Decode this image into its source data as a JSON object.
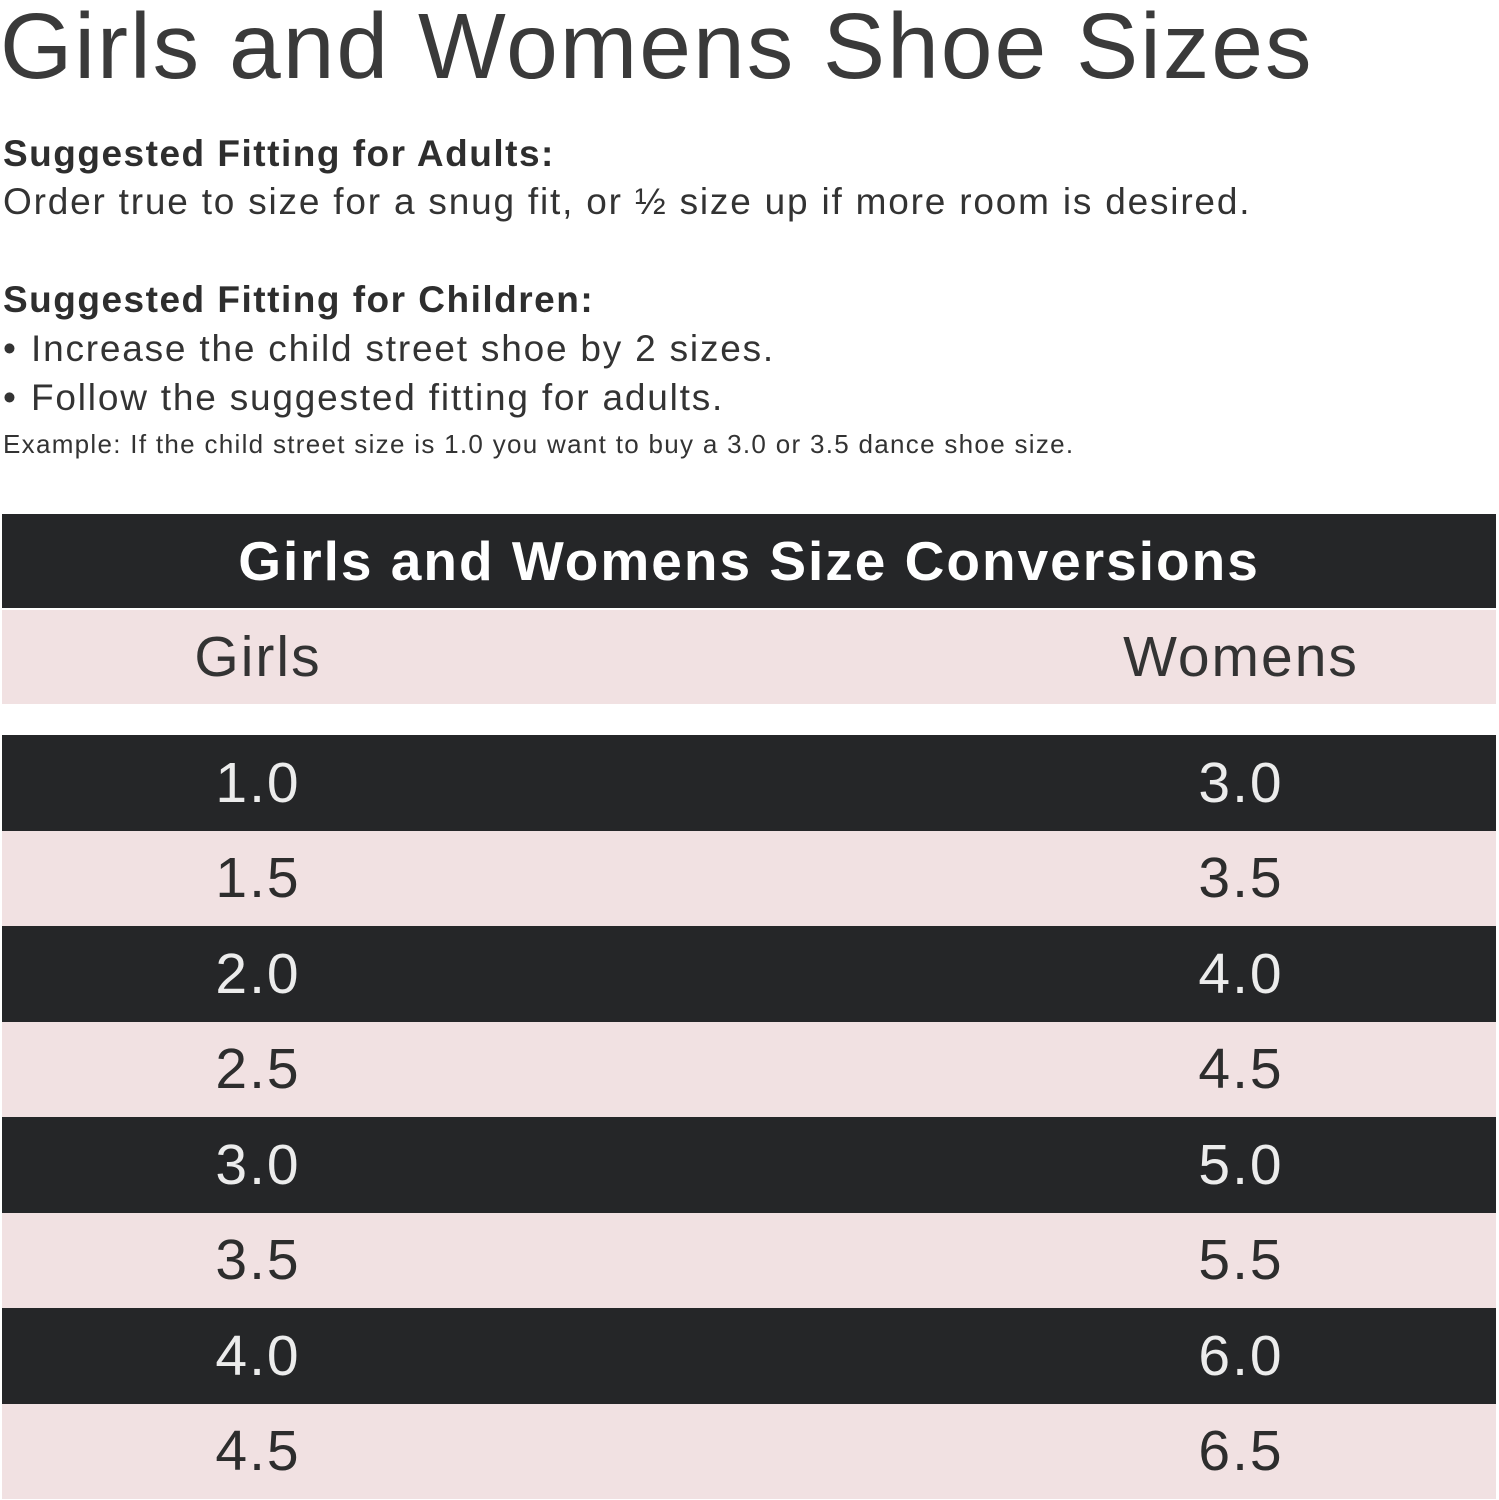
{
  "page": {
    "title": "Girls and Womens Shoe Sizes"
  },
  "adults": {
    "heading": "Suggested Fitting for Adults:",
    "text": "Order true to size for a snug fit, or ½ size up if more room is desired."
  },
  "children": {
    "heading": "Suggested Fitting for Children:",
    "bullets": [
      "Increase the child street shoe by 2 sizes.",
      "Follow the suggested fitting for adults."
    ],
    "bullet_glyph": "•",
    "example": "Example: If the child street size is 1.0 you want to buy a 3.0 or 3.5 dance shoe size."
  },
  "table": {
    "title": "Girls and Womens Size Conversions",
    "columns": [
      "Girls",
      "Womens"
    ],
    "rows": [
      {
        "girls": "1.0",
        "womens": "3.0"
      },
      {
        "girls": "1.5",
        "womens": "3.5"
      },
      {
        "girls": "2.0",
        "womens": "4.0"
      },
      {
        "girls": "2.5",
        "womens": "4.5"
      },
      {
        "girls": "3.0",
        "womens": "5.0"
      },
      {
        "girls": "3.5",
        "womens": "5.5"
      },
      {
        "girls": "4.0",
        "womens": "6.0"
      },
      {
        "girls": "4.5",
        "womens": "6.5"
      }
    ]
  },
  "colors": {
    "dark_row": "#252628",
    "light_row": "#f1e1e2",
    "title_text": "#3a3a3a"
  }
}
